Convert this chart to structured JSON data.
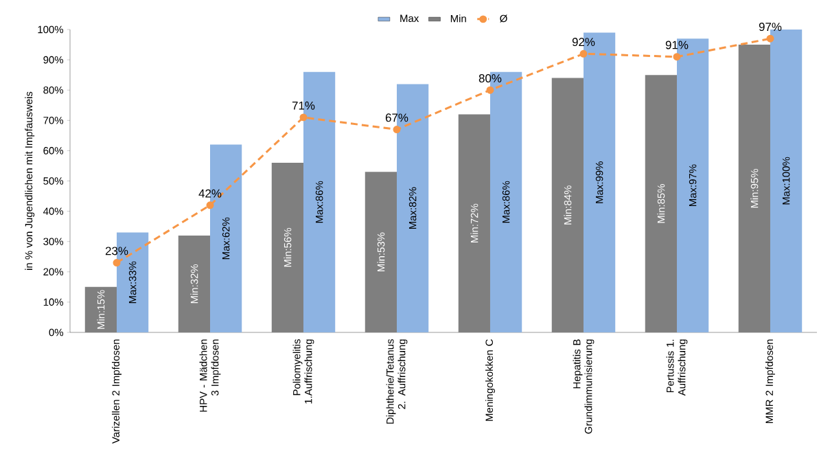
{
  "chart_data": {
    "type": "bar",
    "ylabel": "in % von Jugendlichen mit Impfausweis",
    "categories": [
      "Varizellen 2 Impfdosen",
      "HPV - Mädchen 3 Impfdosen",
      "Poliomyelitis 1.Auffrischung",
      "Diphtherie/Tetanus 2. Auffrischung",
      "Meningokokken C",
      "Hepatitis B Grundimmunisierung",
      "Pertussis 1. Auffrischung",
      "MMR 2 Impfdosen"
    ],
    "series": [
      {
        "name": "Max",
        "color": "#8db3e2",
        "values": [
          33,
          62,
          86,
          82,
          86,
          99,
          97,
          100
        ],
        "value_labels": [
          "Max:33%",
          "Max:62%",
          "Max:86%",
          "Max:82%",
          "Max:86%",
          "Max:99%",
          "Max:97%",
          "Max:100%"
        ]
      },
      {
        "name": "Min",
        "color": "#7f7f7f",
        "values": [
          15,
          32,
          56,
          53,
          72,
          84,
          85,
          95
        ],
        "value_labels": [
          "Min:15%",
          "Min:32%",
          "Min:56%",
          "Min:53%",
          "Min:72%",
          "Min:84%",
          "Min:85%",
          "Min:95%"
        ]
      },
      {
        "name": "Ø",
        "type": "line",
        "color": "#f79646",
        "line_style": "dashed",
        "marker": "circle",
        "values": [
          23,
          42,
          71,
          67,
          80,
          92,
          91,
          97
        ],
        "value_labels": [
          "23%",
          "42%",
          "71%",
          "67%",
          "80%",
          "92%",
          "91%",
          "97%"
        ]
      }
    ],
    "ylim": [
      0,
      100
    ],
    "yticks": [
      {
        "value": 0,
        "label": "0%"
      },
      {
        "value": 10,
        "label": "10%"
      },
      {
        "value": 20,
        "label": "20%"
      },
      {
        "value": 30,
        "label": "30%"
      },
      {
        "value": 40,
        "label": "40%"
      },
      {
        "value": 50,
        "label": "50%"
      },
      {
        "value": 60,
        "label": "60%"
      },
      {
        "value": 70,
        "label": "70%"
      },
      {
        "value": 80,
        "label": "80%"
      },
      {
        "value": 90,
        "label": "90%"
      },
      {
        "value": 100,
        "label": "100%"
      }
    ],
    "legend": "top"
  }
}
